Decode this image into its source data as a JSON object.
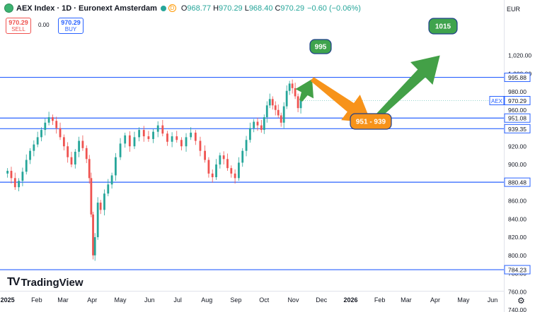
{
  "header": {
    "title": "AEX Index · 1D · Euronext Amsterdam",
    "badge": "D",
    "o_label": "O",
    "o_value": "968.77",
    "h_label": "H",
    "h_value": "970.29",
    "l_label": "L",
    "l_value": "968.40",
    "c_label": "C",
    "c_value": "970.29",
    "change": "−0.60 (−0.06%)"
  },
  "trade": {
    "sell_price": "970.29",
    "sell_label": "SELL",
    "spread": "0.00",
    "buy_price": "970.29",
    "buy_label": "BUY"
  },
  "currency": "EUR",
  "brand": "TradingView",
  "colors": {
    "up": "#26a69a",
    "down": "#ef5350",
    "level": "#2962ff",
    "arrow_green": "#43a047",
    "arrow_orange": "#f7931a",
    "bubble_green": "#3fa34d",
    "bubble_orange": "#f7931a",
    "symbol_tag": "#2962ff"
  },
  "chart_data": {
    "type": "candlestick",
    "symbol_tag": "AEX",
    "last_price": 970.29,
    "last_price_label": "970.29",
    "ylim": [
      740,
      1040
    ],
    "yticks": [
      "1,020.00",
      "1,000.00",
      "980.00",
      "960.00",
      "940.00",
      "920.00",
      "900.00",
      "880.00",
      "860.00",
      "840.00",
      "820.00",
      "800.00",
      "780.00",
      "760.00",
      "740.00"
    ],
    "ytick_values": [
      1020,
      1000,
      980,
      960,
      940,
      920,
      900,
      880,
      860,
      840,
      820,
      800,
      780,
      760,
      740
    ],
    "xticks": [
      "2025",
      "Feb",
      "Mar",
      "Apr",
      "May",
      "Jun",
      "Jul",
      "Aug",
      "Sep",
      "Oct",
      "Nov",
      "Dec",
      "2026",
      "Feb",
      "Mar",
      "Apr",
      "May",
      "Jun"
    ],
    "xtick_days": [
      0,
      31,
      59,
      90,
      120,
      151,
      181,
      212,
      243,
      273,
      304,
      334,
      365,
      396,
      424,
      455,
      485,
      516
    ],
    "xlim_days": [
      -2,
      528
    ],
    "levels": [
      {
        "value": 995.88,
        "label": "995.88"
      },
      {
        "value": 951.08,
        "label": "951.08"
      },
      {
        "value": 939.35,
        "label": "939.35"
      },
      {
        "value": 880.48,
        "label": "880.48"
      },
      {
        "value": 784.23,
        "label": "784.23"
      }
    ],
    "closes": [
      {
        "d": 0,
        "c": 893
      },
      {
        "d": 4,
        "c": 885
      },
      {
        "d": 8,
        "c": 875
      },
      {
        "d": 12,
        "c": 882
      },
      {
        "d": 16,
        "c": 892
      },
      {
        "d": 20,
        "c": 905
      },
      {
        "d": 24,
        "c": 915
      },
      {
        "d": 28,
        "c": 922
      },
      {
        "d": 32,
        "c": 930
      },
      {
        "d": 36,
        "c": 938
      },
      {
        "d": 40,
        "c": 946
      },
      {
        "d": 44,
        "c": 952
      },
      {
        "d": 48,
        "c": 948
      },
      {
        "d": 52,
        "c": 940
      },
      {
        "d": 56,
        "c": 930
      },
      {
        "d": 60,
        "c": 920
      },
      {
        "d": 64,
        "c": 908
      },
      {
        "d": 68,
        "c": 900
      },
      {
        "d": 72,
        "c": 914
      },
      {
        "d": 76,
        "c": 926
      },
      {
        "d": 80,
        "c": 918
      },
      {
        "d": 84,
        "c": 906
      },
      {
        "d": 87,
        "c": 885
      },
      {
        "d": 89,
        "c": 845
      },
      {
        "d": 91,
        "c": 800
      },
      {
        "d": 93,
        "c": 820
      },
      {
        "d": 96,
        "c": 858
      },
      {
        "d": 99,
        "c": 850
      },
      {
        "d": 103,
        "c": 868
      },
      {
        "d": 107,
        "c": 878
      },
      {
        "d": 111,
        "c": 888
      },
      {
        "d": 115,
        "c": 908
      },
      {
        "d": 120,
        "c": 923
      },
      {
        "d": 125,
        "c": 932
      },
      {
        "d": 130,
        "c": 920
      },
      {
        "d": 135,
        "c": 930
      },
      {
        "d": 140,
        "c": 938
      },
      {
        "d": 145,
        "c": 931
      },
      {
        "d": 150,
        "c": 928
      },
      {
        "d": 155,
        "c": 936
      },
      {
        "d": 160,
        "c": 943
      },
      {
        "d": 165,
        "c": 934
      },
      {
        "d": 170,
        "c": 925
      },
      {
        "d": 175,
        "c": 931
      },
      {
        "d": 180,
        "c": 927
      },
      {
        "d": 185,
        "c": 920
      },
      {
        "d": 190,
        "c": 930
      },
      {
        "d": 195,
        "c": 935
      },
      {
        "d": 200,
        "c": 926
      },
      {
        "d": 205,
        "c": 915
      },
      {
        "d": 210,
        "c": 905
      },
      {
        "d": 214,
        "c": 890
      },
      {
        "d": 218,
        "c": 886
      },
      {
        "d": 222,
        "c": 900
      },
      {
        "d": 226,
        "c": 910
      },
      {
        "d": 230,
        "c": 906
      },
      {
        "d": 234,
        "c": 896
      },
      {
        "d": 238,
        "c": 890
      },
      {
        "d": 242,
        "c": 885
      },
      {
        "d": 246,
        "c": 902
      },
      {
        "d": 250,
        "c": 915
      },
      {
        "d": 254,
        "c": 927
      },
      {
        "d": 258,
        "c": 940
      },
      {
        "d": 262,
        "c": 947
      },
      {
        "d": 266,
        "c": 943
      },
      {
        "d": 270,
        "c": 938
      },
      {
        "d": 273,
        "c": 952
      },
      {
        "d": 276,
        "c": 965
      },
      {
        "d": 279,
        "c": 972
      },
      {
        "d": 282,
        "c": 965
      },
      {
        "d": 285,
        "c": 960
      },
      {
        "d": 288,
        "c": 954
      },
      {
        "d": 291,
        "c": 946
      },
      {
        "d": 294,
        "c": 964
      },
      {
        "d": 297,
        "c": 981
      },
      {
        "d": 300,
        "c": 989
      },
      {
        "d": 303,
        "c": 984
      },
      {
        "d": 306,
        "c": 975
      },
      {
        "d": 309,
        "c": 962
      },
      {
        "d": 312,
        "c": 970.29
      }
    ],
    "annotations": [
      {
        "text": "995",
        "color": "green"
      },
      {
        "text": "951 - 939",
        "color": "orange"
      },
      {
        "text": "1015",
        "color": "green"
      }
    ]
  }
}
